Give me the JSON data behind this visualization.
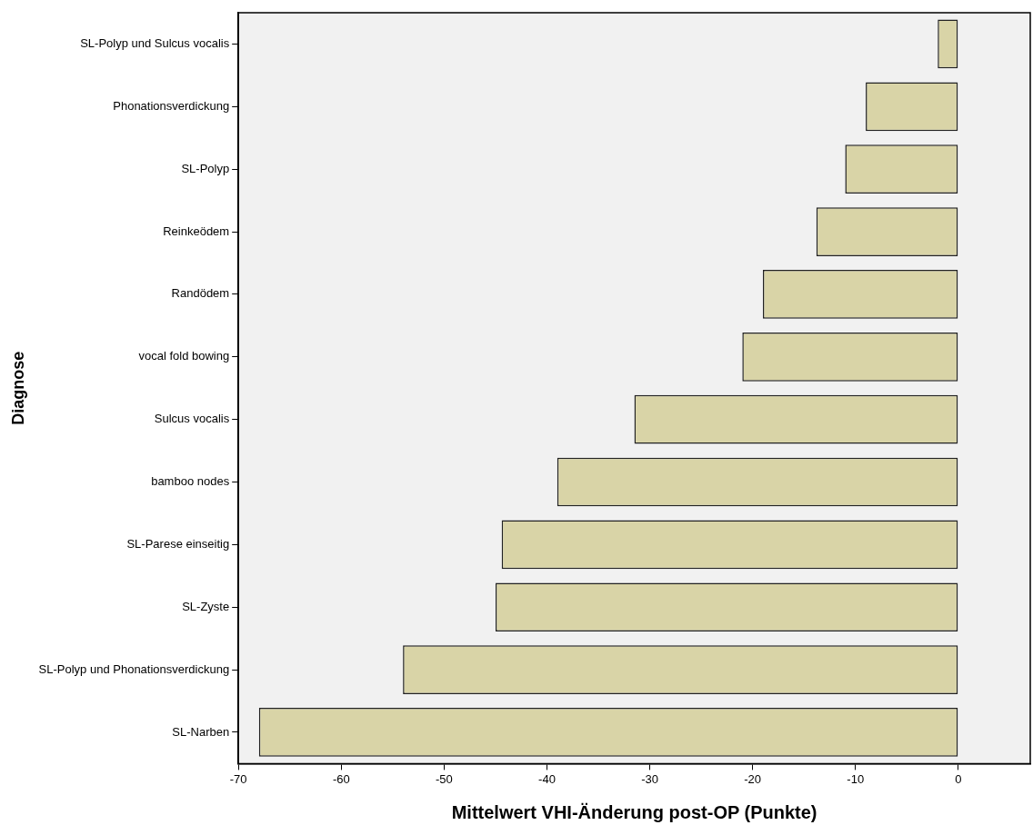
{
  "chart_data": {
    "type": "bar",
    "orientation": "horizontal",
    "xlabel": "Mittelwert VHI-Änderung post-OP (Punkte)",
    "ylabel": "Diagnose",
    "categories": [
      "SL-Polyp und Sulcus vocalis",
      "Phonationsverdickung",
      "SL-Polyp",
      "Reinkeödem",
      "Randödem",
      "vocal fold bowing",
      "Sulcus vocalis",
      "bamboo nodes",
      "SL-Parese einseitig",
      "SL-Zyste",
      "SL-Polyp und Phonationsverdickung",
      "SL-Narben"
    ],
    "values": [
      -2.0,
      -9.0,
      -11.0,
      -13.8,
      -19.0,
      -21.0,
      -31.5,
      -39.0,
      -44.4,
      -45.0,
      -54.0,
      -68.0
    ],
    "color": "#d9d4a7",
    "xlim": [
      -70,
      7
    ],
    "xticks": [
      -70,
      -60,
      -50,
      -40,
      -30,
      -20,
      -10,
      0
    ],
    "grid": false,
    "legend": false
  }
}
